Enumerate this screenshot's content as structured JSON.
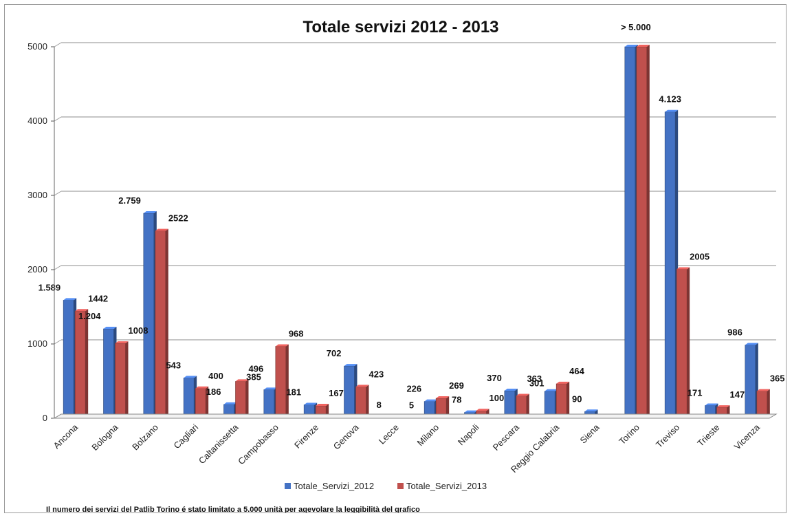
{
  "chart_data": {
    "type": "bar",
    "title": "Totale servizi 2012 - 2013",
    "xlabel": "",
    "ylabel": "",
    "ylim": [
      0,
      5000
    ],
    "yticks": [
      "0",
      "1000",
      "2000",
      "3000",
      "4000",
      "5000"
    ],
    "grid": true,
    "legend_position": "bottom",
    "categories": [
      "Ancona",
      "Bologna",
      "Bolzano",
      "Cagliari",
      "Caltanissetta",
      "Campobasso",
      "Firenze",
      "Genova",
      "Lecce",
      "Milano",
      "Napoli",
      "Pescara",
      "Reggio Calabria",
      "Siena",
      "Torino",
      "Treviso",
      "Trieste",
      "Vicenza"
    ],
    "series": [
      {
        "name": "Totale_Servizi_2012",
        "color": "#4472C4",
        "values": [
          1589,
          1204,
          2759,
          543,
          186,
          385,
          181,
          702,
          8,
          226,
          78,
          370,
          363,
          90,
          5000,
          4123,
          171,
          986
        ],
        "labels": [
          "1.589",
          "1.204",
          "2.759",
          "543",
          "186",
          "385",
          "181",
          "702",
          "8",
          "226",
          "78",
          "370",
          "363",
          "90",
          "> 5.000",
          "4.123",
          "171",
          "986"
        ]
      },
      {
        "name": "Totale_Servizi_2013",
        "color": "#C0504D",
        "values": [
          1442,
          1008,
          2522,
          400,
          496,
          968,
          167,
          423,
          5,
          269,
          100,
          301,
          464,
          null,
          5000,
          2005,
          147,
          365
        ],
        "labels": [
          "1442",
          "1008",
          "2522",
          "400",
          "496",
          "968",
          "167",
          "423",
          "5",
          "269",
          "100",
          "301",
          "464",
          "",
          "",
          "2005",
          "147",
          "365"
        ]
      }
    ],
    "footnote": "Il numero dei servizi del Patlib Torino é stato limitato a 5.000  unità per agevolare la leggibilità del grafico"
  }
}
